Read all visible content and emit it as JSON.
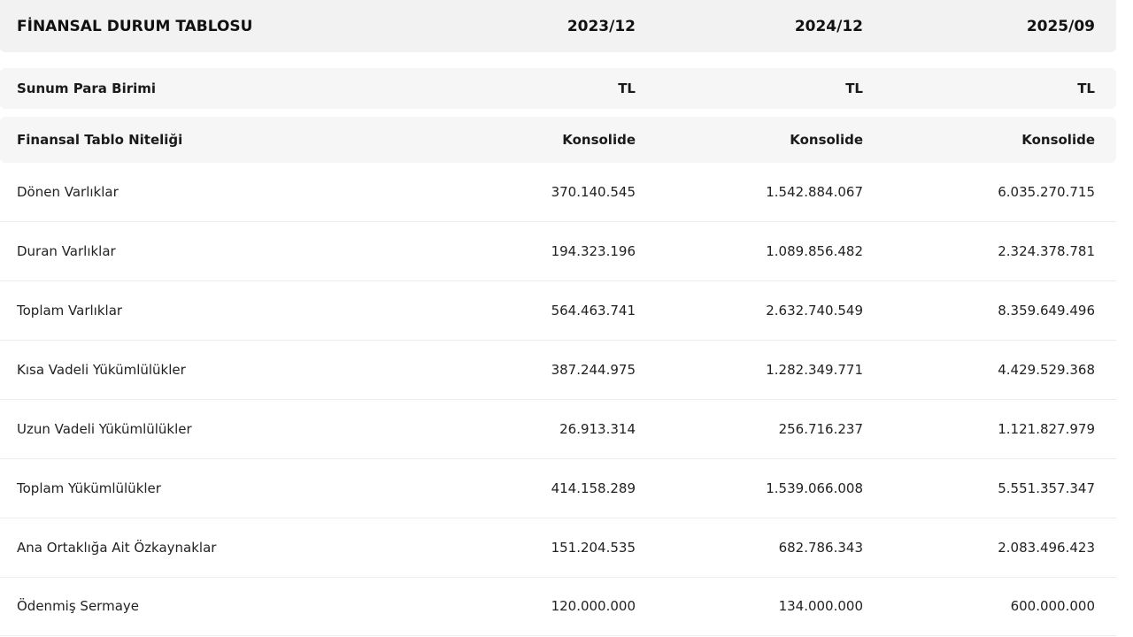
{
  "header": {
    "title": "FİNANSAL DURUM TABLOSU",
    "periods": [
      "2023/12",
      "2024/12",
      "2025/09"
    ]
  },
  "meta_rows": [
    {
      "label": "Sunum Para Birimi",
      "values": [
        "TL",
        "TL",
        "TL"
      ]
    },
    {
      "label": "Finansal Tablo Niteliği",
      "values": [
        "Konsolide",
        "Konsolide",
        "Konsolide"
      ]
    }
  ],
  "rows": [
    {
      "label": "Dönen Varlıklar",
      "values": [
        "370.140.545",
        "1.542.884.067",
        "6.035.270.715"
      ]
    },
    {
      "label": "Duran Varlıklar",
      "values": [
        "194.323.196",
        "1.089.856.482",
        "2.324.378.781"
      ]
    },
    {
      "label": "Toplam Varlıklar",
      "values": [
        "564.463.741",
        "2.632.740.549",
        "8.359.649.496"
      ]
    },
    {
      "label": "Kısa Vadeli Yükümlülükler",
      "values": [
        "387.244.975",
        "1.282.349.771",
        "4.429.529.368"
      ]
    },
    {
      "label": "Uzun Vadeli Yükümlülükler",
      "values": [
        "26.913.314",
        "256.716.237",
        "1.121.827.979"
      ]
    },
    {
      "label": "Toplam Yükümlülükler",
      "values": [
        "414.158.289",
        "1.539.066.008",
        "5.551.357.347"
      ]
    },
    {
      "label": "Ana Ortaklığa Ait Özkaynaklar",
      "values": [
        "151.204.535",
        "682.786.343",
        "2.083.496.423"
      ]
    },
    {
      "label": "Ödenmiş Sermaye",
      "values": [
        "120.000.000",
        "134.000.000",
        "600.000.000"
      ]
    }
  ]
}
